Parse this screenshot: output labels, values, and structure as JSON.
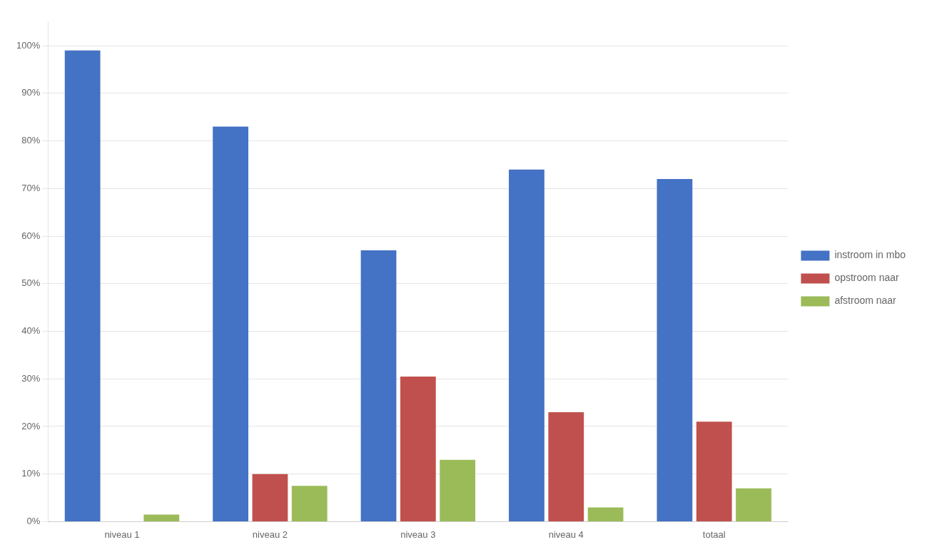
{
  "chart_data": {
    "type": "bar",
    "categories": [
      "niveau 1",
      "niveau 2",
      "niveau 3",
      "niveau 4",
      "totaal"
    ],
    "series": [
      {
        "name": "instroom in mbo",
        "color": "#4472C4",
        "values": [
          0.99,
          0.83,
          0.57,
          0.74,
          0.72
        ]
      },
      {
        "name": "opstroom naar",
        "color": "#C0504D",
        "values": [
          0.0,
          0.1,
          0.305,
          0.23,
          0.21
        ]
      },
      {
        "name": "afstroom naar",
        "color": "#9BBB59",
        "values": [
          0.015,
          0.075,
          0.13,
          0.03,
          0.07
        ]
      }
    ],
    "ylim": [
      0,
      1.05
    ],
    "yticks": [
      {
        "value": 0.0,
        "label": "0%"
      },
      {
        "value": 0.1,
        "label": "10%"
      },
      {
        "value": 0.2,
        "label": "20%"
      },
      {
        "value": 0.3,
        "label": "30%"
      },
      {
        "value": 0.4,
        "label": "40%"
      },
      {
        "value": 0.5,
        "label": "50%"
      },
      {
        "value": 0.6,
        "label": "60%"
      },
      {
        "value": 0.7,
        "label": "70%"
      },
      {
        "value": 0.8,
        "label": "80%"
      },
      {
        "value": 0.9,
        "label": "90%"
      },
      {
        "value": 1.0,
        "label": "100%"
      }
    ],
    "grid": true,
    "legend": "right"
  }
}
